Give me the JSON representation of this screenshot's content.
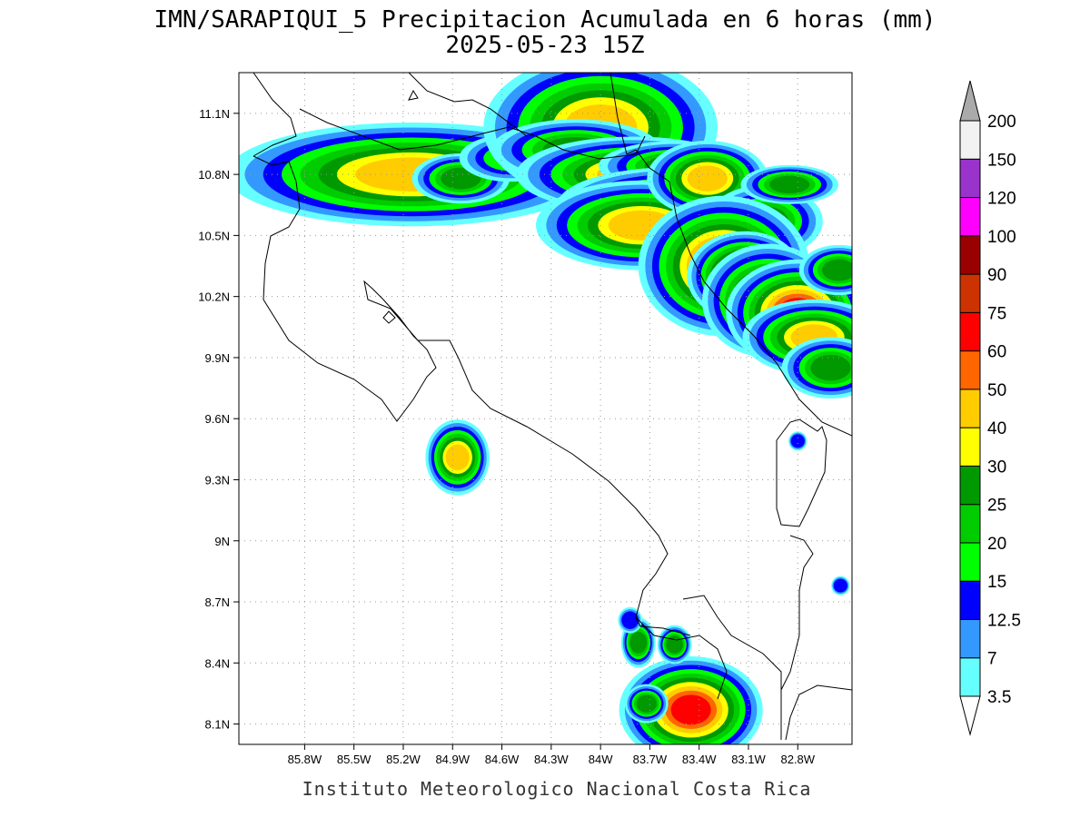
{
  "title": {
    "line1": "IMN/SARAPIQUI_5 Precipitacion Acumulada en 6 horas (mm)",
    "line2": "2025-05-23 15Z"
  },
  "credit": "Instituto Meteorologico Nacional Costa Rica",
  "map": {
    "lon_range": [
      -86.2,
      -82.47
    ],
    "lat_range": [
      8.0,
      11.3
    ],
    "x_ticks": [
      {
        "value": -85.8,
        "label": "85.8W"
      },
      {
        "value": -85.5,
        "label": "85.5W"
      },
      {
        "value": -85.2,
        "label": "85.2W"
      },
      {
        "value": -84.9,
        "label": "84.9W"
      },
      {
        "value": -84.6,
        "label": "84.6W"
      },
      {
        "value": -84.3,
        "label": "84.3W"
      },
      {
        "value": -84.0,
        "label": "84W"
      },
      {
        "value": -83.7,
        "label": "83.7W"
      },
      {
        "value": -83.4,
        "label": "83.4W"
      },
      {
        "value": -83.1,
        "label": "83.1W"
      },
      {
        "value": -82.8,
        "label": "82.8W"
      }
    ],
    "y_ticks": [
      {
        "value": 8.1,
        "label": "8.1N"
      },
      {
        "value": 8.4,
        "label": "8.4N"
      },
      {
        "value": 8.7,
        "label": "8.7N"
      },
      {
        "value": 9.0,
        "label": "9N"
      },
      {
        "value": 9.3,
        "label": "9.3N"
      },
      {
        "value": 9.6,
        "label": "9.6N"
      },
      {
        "value": 9.9,
        "label": "9.9N"
      },
      {
        "value": 10.2,
        "label": "10.2N"
      },
      {
        "value": 10.5,
        "label": "10.5N"
      },
      {
        "value": 10.8,
        "label": "10.8N"
      },
      {
        "value": 11.1,
        "label": "11.1N"
      }
    ],
    "grid": "dotted"
  },
  "colorbar": {
    "levels": [
      {
        "label": "3.5",
        "color": "#66ffff"
      },
      {
        "label": "7",
        "color": "#3399ff"
      },
      {
        "label": "12.5",
        "color": "#0000ff"
      },
      {
        "label": "15",
        "color": "#00ff00"
      },
      {
        "label": "20",
        "color": "#00cc00"
      },
      {
        "label": "25",
        "color": "#009900"
      },
      {
        "label": "30",
        "color": "#ffff00"
      },
      {
        "label": "40",
        "color": "#ffcc00"
      },
      {
        "label": "50",
        "color": "#ff6600"
      },
      {
        "label": "60",
        "color": "#ff0000"
      },
      {
        "label": "75",
        "color": "#cc3300"
      },
      {
        "label": "90",
        "color": "#990000"
      },
      {
        "label": "100",
        "color": "#ff00ff"
      },
      {
        "label": "120",
        "color": "#9933cc"
      },
      {
        "label": "150",
        "color": "#f2f2f2"
      },
      {
        "label": "200",
        "color": "#aaaaaa"
      }
    ],
    "over_color": "#aaaaaa",
    "under_color": "#ffffff"
  },
  "precip_cells": [
    {
      "lon": -85.15,
      "lat": 10.8,
      "rx": 0.32,
      "ry": 0.07,
      "level": 7
    },
    {
      "lon": -84.85,
      "lat": 10.78,
      "rx": 0.1,
      "ry": 0.04,
      "level": 5
    },
    {
      "lon": -84.55,
      "lat": 10.88,
      "rx": 0.14,
      "ry": 0.05,
      "level": 3
    },
    {
      "lon": -84.0,
      "lat": 11.03,
      "rx": 0.2,
      "ry": 0.1,
      "level": 7
    },
    {
      "lon": -84.15,
      "lat": 10.92,
      "rx": 0.18,
      "ry": 0.05,
      "level": 5
    },
    {
      "lon": -83.8,
      "lat": 10.8,
      "rx": 0.2,
      "ry": 0.05,
      "level": 7
    },
    {
      "lon": -83.55,
      "lat": 10.84,
      "rx": 0.16,
      "ry": 0.04,
      "level": 5
    },
    {
      "lon": -83.55,
      "lat": 10.65,
      "rx": 0.2,
      "ry": 0.05,
      "level": 7
    },
    {
      "lon": -83.75,
      "lat": 10.55,
      "rx": 0.18,
      "ry": 0.06,
      "level": 7
    },
    {
      "lon": -83.35,
      "lat": 10.78,
      "rx": 0.1,
      "ry": 0.05,
      "level": 7
    },
    {
      "lon": -83.0,
      "lat": 10.57,
      "rx": 0.12,
      "ry": 0.06,
      "level": 5
    },
    {
      "lon": -82.85,
      "lat": 10.75,
      "rx": 0.1,
      "ry": 0.03,
      "level": 5
    },
    {
      "lon": -83.25,
      "lat": 10.35,
      "rx": 0.12,
      "ry": 0.08,
      "level": 9
    },
    {
      "lon": -83.12,
      "lat": 10.3,
      "rx": 0.08,
      "ry": 0.05,
      "level": 9
    },
    {
      "lon": -82.98,
      "lat": 10.18,
      "rx": 0.1,
      "ry": 0.07,
      "level": 8
    },
    {
      "lon": -82.8,
      "lat": 10.12,
      "rx": 0.1,
      "ry": 0.06,
      "level": 9
    },
    {
      "lon": -82.7,
      "lat": 10.0,
      "rx": 0.12,
      "ry": 0.05,
      "level": 7
    },
    {
      "lon": -82.6,
      "lat": 9.85,
      "rx": 0.1,
      "ry": 0.05,
      "level": 5
    },
    {
      "lon": -82.55,
      "lat": 10.33,
      "rx": 0.08,
      "ry": 0.04,
      "level": 5
    },
    {
      "lon": -84.87,
      "lat": 9.41,
      "rx": 0.05,
      "ry": 0.05,
      "level": 7
    },
    {
      "lon": -83.45,
      "lat": 8.17,
      "rx": 0.1,
      "ry": 0.06,
      "level": 9
    },
    {
      "lon": -83.72,
      "lat": 8.2,
      "rx": 0.04,
      "ry": 0.03,
      "level": 5
    },
    {
      "lon": -83.77,
      "lat": 8.5,
      "rx": 0.03,
      "ry": 0.04,
      "level": 5
    },
    {
      "lon": -83.55,
      "lat": 8.49,
      "rx": 0.03,
      "ry": 0.03,
      "level": 5
    },
    {
      "lon": -83.82,
      "lat": 8.61,
      "rx": 0.03,
      "ry": 0.03,
      "level": 2
    },
    {
      "lon": -82.54,
      "lat": 8.78,
      "rx": 0.02,
      "ry": 0.02,
      "level": 2
    },
    {
      "lon": -82.8,
      "lat": 9.49,
      "rx": 0.02,
      "ry": 0.02,
      "level": 2
    }
  ]
}
